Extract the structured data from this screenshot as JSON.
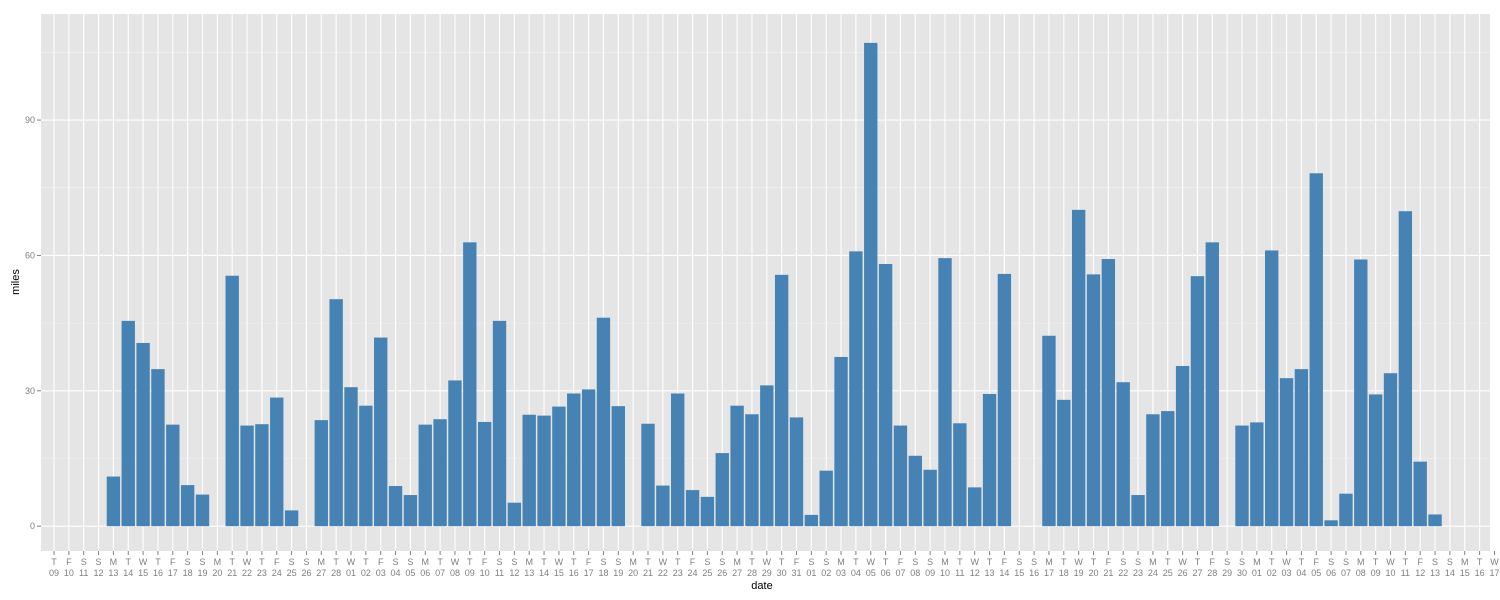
{
  "chart_data": {
    "type": "bar",
    "xlabel": "date",
    "ylabel": "miles",
    "ylim": [
      -5.5,
      113.5
    ],
    "yticks": [
      0,
      30,
      60,
      90
    ],
    "grid": true,
    "colors": {
      "bar": "#4682b4",
      "panel": "#e5e5e5",
      "grid_major": "#ffffff",
      "grid_minor": "#f2f2f2"
    },
    "categories": [
      [
        "T",
        "09"
      ],
      [
        "F",
        "10"
      ],
      [
        "S",
        "11"
      ],
      [
        "S",
        "12"
      ],
      [
        "M",
        "13"
      ],
      [
        "T",
        "14"
      ],
      [
        "W",
        "15"
      ],
      [
        "T",
        "16"
      ],
      [
        "F",
        "17"
      ],
      [
        "S",
        "18"
      ],
      [
        "S",
        "19"
      ],
      [
        "M",
        "20"
      ],
      [
        "T",
        "21"
      ],
      [
        "W",
        "22"
      ],
      [
        "T",
        "23"
      ],
      [
        "F",
        "24"
      ],
      [
        "S",
        "25"
      ],
      [
        "S",
        "26"
      ],
      [
        "M",
        "27"
      ],
      [
        "T",
        "28"
      ],
      [
        "W",
        "01"
      ],
      [
        "T",
        "02"
      ],
      [
        "F",
        "03"
      ],
      [
        "S",
        "04"
      ],
      [
        "S",
        "05"
      ],
      [
        "M",
        "06"
      ],
      [
        "T",
        "07"
      ],
      [
        "W",
        "08"
      ],
      [
        "T",
        "09"
      ],
      [
        "F",
        "10"
      ],
      [
        "S",
        "11"
      ],
      [
        "S",
        "12"
      ],
      [
        "M",
        "13"
      ],
      [
        "T",
        "14"
      ],
      [
        "W",
        "15"
      ],
      [
        "T",
        "16"
      ],
      [
        "F",
        "17"
      ],
      [
        "S",
        "18"
      ],
      [
        "S",
        "19"
      ],
      [
        "M",
        "20"
      ],
      [
        "T",
        "21"
      ],
      [
        "W",
        "22"
      ],
      [
        "T",
        "23"
      ],
      [
        "F",
        "24"
      ],
      [
        "S",
        "25"
      ],
      [
        "S",
        "26"
      ],
      [
        "M",
        "27"
      ],
      [
        "T",
        "28"
      ],
      [
        "W",
        "29"
      ],
      [
        "T",
        "30"
      ],
      [
        "F",
        "31"
      ],
      [
        "S",
        "01"
      ],
      [
        "S",
        "02"
      ],
      [
        "M",
        "03"
      ],
      [
        "T",
        "04"
      ],
      [
        "W",
        "05"
      ],
      [
        "T",
        "06"
      ],
      [
        "F",
        "07"
      ],
      [
        "S",
        "08"
      ],
      [
        "S",
        "09"
      ],
      [
        "M",
        "10"
      ],
      [
        "T",
        "11"
      ],
      [
        "W",
        "12"
      ],
      [
        "T",
        "13"
      ],
      [
        "F",
        "14"
      ],
      [
        "S",
        "15"
      ],
      [
        "S",
        "16"
      ],
      [
        "M",
        "17"
      ],
      [
        "T",
        "18"
      ],
      [
        "W",
        "19"
      ],
      [
        "T",
        "20"
      ],
      [
        "F",
        "21"
      ],
      [
        "S",
        "22"
      ],
      [
        "S",
        "23"
      ],
      [
        "M",
        "24"
      ],
      [
        "T",
        "25"
      ],
      [
        "W",
        "26"
      ],
      [
        "T",
        "27"
      ],
      [
        "F",
        "28"
      ],
      [
        "S",
        "29"
      ],
      [
        "S",
        "30"
      ],
      [
        "M",
        "01"
      ],
      [
        "T",
        "02"
      ],
      [
        "W",
        "03"
      ],
      [
        "T",
        "04"
      ],
      [
        "F",
        "05"
      ],
      [
        "S",
        "06"
      ],
      [
        "S",
        "07"
      ],
      [
        "M",
        "08"
      ],
      [
        "T",
        "09"
      ],
      [
        "W",
        "10"
      ],
      [
        "T",
        "11"
      ],
      [
        "F",
        "12"
      ],
      [
        "S",
        "13"
      ],
      [
        "S",
        "14"
      ],
      [
        "M",
        "15"
      ],
      [
        "T",
        "16"
      ],
      [
        "W",
        "17"
      ]
    ],
    "values": [
      null,
      null,
      null,
      null,
      11,
      45.5,
      40.6,
      34.8,
      22.5,
      9.1,
      7,
      null,
      55.5,
      22.3,
      22.6,
      28.5,
      3.5,
      null,
      23.5,
      50.3,
      30.8,
      26.7,
      41.8,
      8.9,
      6.9,
      22.5,
      23.7,
      32.3,
      62.9,
      23.1,
      45.5,
      5.2,
      24.7,
      24.5,
      26.5,
      29.4,
      30.3,
      46.2,
      26.6,
      null,
      22.7,
      9,
      29.4,
      8,
      6.5,
      16.2,
      26.7,
      24.8,
      31.2,
      55.7,
      24.1,
      2.5,
      12.3,
      37.5,
      60.9,
      107.1,
      58.1,
      22.3,
      15.6,
      12.5,
      59.4,
      22.8,
      8.6,
      29.3,
      55.9,
      null,
      null,
      42.2,
      28,
      70.1,
      55.8,
      59.2,
      31.9,
      6.9,
      24.8,
      25.5,
      35.5,
      55.4,
      62.9,
      null,
      22.3,
      23,
      61.1,
      32.8,
      34.8,
      78.2,
      1.3,
      7.2,
      59.1,
      29.2,
      33.9,
      69.8,
      14.3,
      2.6,
      null,
      null,
      null,
      null
    ]
  }
}
